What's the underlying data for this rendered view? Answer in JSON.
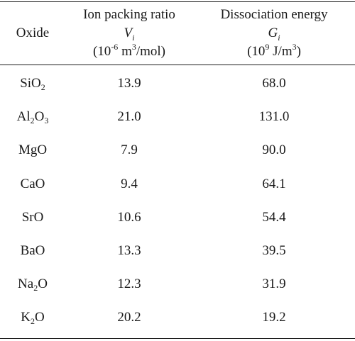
{
  "table": {
    "headers": {
      "oxide": "Oxide",
      "v_title": "Ion packing ratio",
      "v_symbol": "V",
      "v_sub": "i",
      "v_unit_prefix": "(10",
      "v_unit_exp": "-6",
      "v_unit_mid": " m",
      "v_unit_exp2": "3",
      "v_unit_suffix": "/mol)",
      "g_title": "Dissociation energy",
      "g_symbol": "G",
      "g_sub": "i",
      "g_unit_prefix": "(10",
      "g_unit_exp": "9",
      "g_unit_mid": " J/m",
      "g_unit_exp2": "3",
      "g_unit_suffix": ")"
    },
    "rows": [
      {
        "oxide_base": "SiO",
        "oxide_sub": "2",
        "oxide_tail": "",
        "oxide_sub2": "",
        "oxide_end": "",
        "v": "13.9",
        "g": "68.0"
      },
      {
        "oxide_base": "Al",
        "oxide_sub": "2",
        "oxide_tail": "O",
        "oxide_sub2": "3",
        "oxide_end": "",
        "v": "21.0",
        "g": "131.0"
      },
      {
        "oxide_base": "MgO",
        "oxide_sub": "",
        "oxide_tail": "",
        "oxide_sub2": "",
        "oxide_end": "",
        "v": "7.9",
        "g": "90.0"
      },
      {
        "oxide_base": "CaO",
        "oxide_sub": "",
        "oxide_tail": "",
        "oxide_sub2": "",
        "oxide_end": "",
        "v": "9.4",
        "g": "64.1"
      },
      {
        "oxide_base": "SrO",
        "oxide_sub": "",
        "oxide_tail": "",
        "oxide_sub2": "",
        "oxide_end": "",
        "v": "10.6",
        "g": "54.4"
      },
      {
        "oxide_base": "BaO",
        "oxide_sub": "",
        "oxide_tail": "",
        "oxide_sub2": "",
        "oxide_end": "",
        "v": "13.3",
        "g": "39.5"
      },
      {
        "oxide_base": "Na",
        "oxide_sub": "2",
        "oxide_tail": "O",
        "oxide_sub2": "",
        "oxide_end": "",
        "v": "12.3",
        "g": "31.9"
      },
      {
        "oxide_base": "K",
        "oxide_sub": "2",
        "oxide_tail": "O",
        "oxide_sub2": "",
        "oxide_end": "",
        "v": "20.2",
        "g": "19.2"
      }
    ]
  }
}
